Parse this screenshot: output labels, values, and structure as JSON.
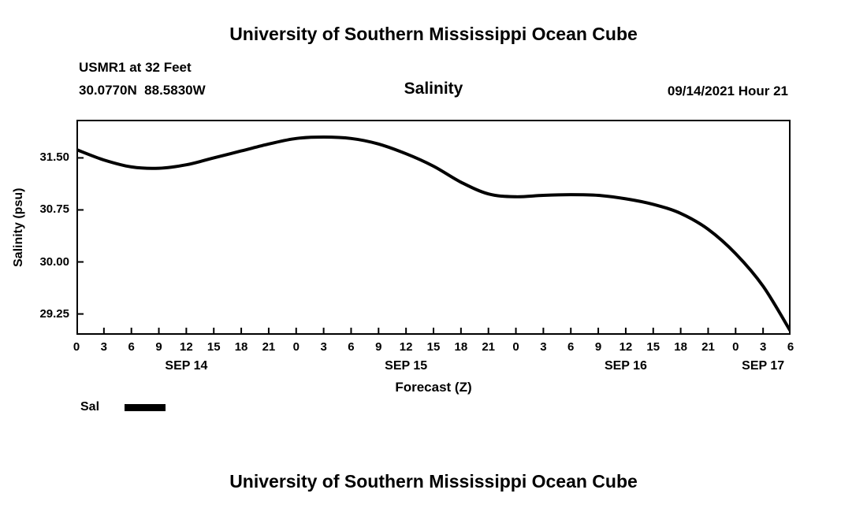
{
  "page": {
    "title_top": "University of Southern Mississippi Ocean Cube",
    "title_bottom": "University of Southern Mississippi Ocean Cube"
  },
  "header": {
    "station": "USMR1 at 32 Feet",
    "coordinates": "30.0770N  88.5830W",
    "plot_title": "Salinity",
    "datetime": "09/14/2021 Hour 21"
  },
  "legend": {
    "label": "Sal",
    "color": "#000000"
  },
  "colors": {
    "foreground": "#000000",
    "background": "#ffffff"
  },
  "chart_data": {
    "type": "line",
    "title": "Salinity",
    "xlabel": "Forecast (Z)",
    "ylabel": "Salinity (psu)",
    "ylim": [
      28.95,
      32.05
    ],
    "xlim_hours": [
      0,
      78
    ],
    "yticks": [
      31.5,
      30.75,
      30.0,
      29.25
    ],
    "xtick_interval_hours": 3,
    "xtick_labels": [
      "0",
      "3",
      "6",
      "9",
      "12",
      "15",
      "18",
      "21",
      "0",
      "3",
      "6",
      "9",
      "12",
      "15",
      "18",
      "21",
      "0",
      "3",
      "6",
      "9",
      "12",
      "15",
      "18",
      "21",
      "0",
      "3",
      "6"
    ],
    "date_labels": [
      {
        "label": "SEP 14",
        "hour": 12
      },
      {
        "label": "SEP 15",
        "hour": 36
      },
      {
        "label": "SEP 16",
        "hour": 60
      },
      {
        "label": "SEP 17",
        "hour": 75
      }
    ],
    "grid": false,
    "legend_position": "bottom-left",
    "series": [
      {
        "name": "Sal",
        "color": "#000000",
        "x_hours": [
          0,
          3,
          6,
          9,
          12,
          15,
          18,
          21,
          24,
          27,
          30,
          33,
          36,
          39,
          42,
          45,
          48,
          51,
          54,
          57,
          60,
          63,
          66,
          69,
          72,
          75,
          78
        ],
        "values": [
          31.62,
          31.47,
          31.37,
          31.35,
          31.4,
          31.5,
          31.6,
          31.7,
          31.78,
          31.8,
          31.78,
          31.7,
          31.56,
          31.38,
          31.15,
          30.98,
          30.94,
          30.96,
          30.97,
          30.96,
          30.91,
          30.83,
          30.7,
          30.47,
          30.12,
          29.65,
          29.0
        ]
      }
    ]
  }
}
